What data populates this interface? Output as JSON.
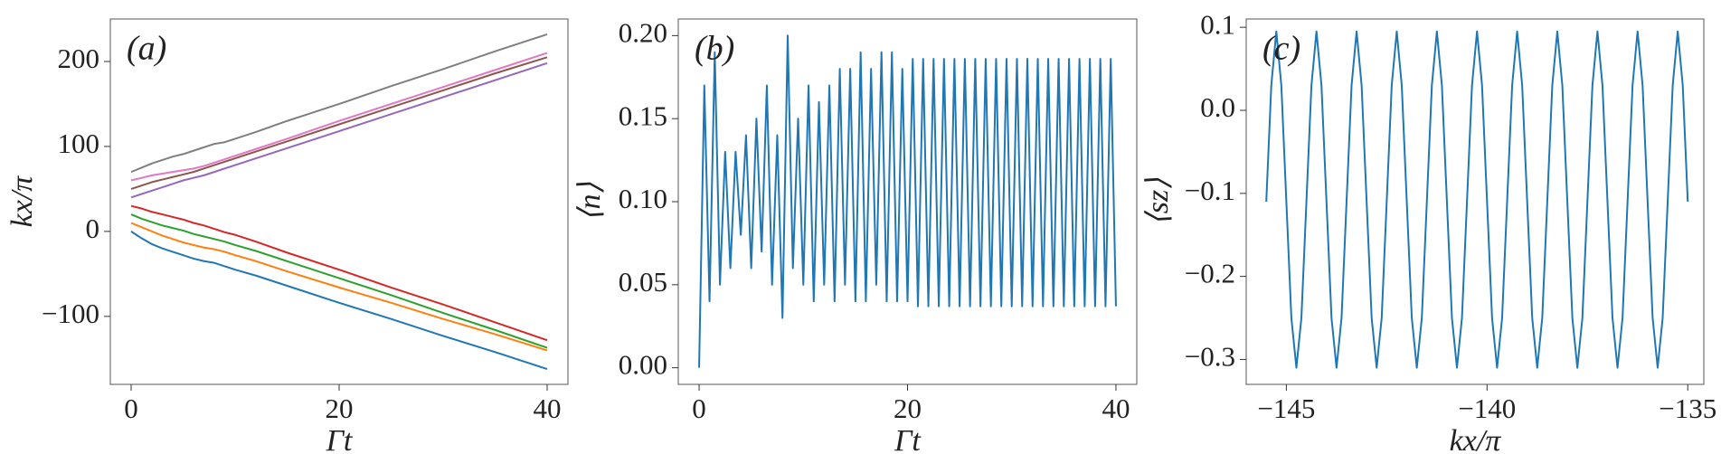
{
  "chart_data": [
    {
      "type": "line",
      "panel_label": "(a)",
      "x_label": "Γt",
      "y_label": "kx/π",
      "x": [
        0,
        1,
        2,
        3,
        4,
        5,
        6,
        7,
        8,
        9,
        10,
        12,
        15,
        20,
        25,
        30,
        35,
        40
      ],
      "xlim": [
        -2,
        42
      ],
      "xticks": [
        0,
        20,
        40
      ],
      "ylim": [
        -180,
        250
      ],
      "yticks": [
        {
          "value": -100,
          "label": "−100"
        },
        0,
        100,
        200
      ],
      "series": [
        {
          "color": "#1f77b4",
          "values": [
            0,
            -8,
            -15,
            -20,
            -24,
            -28,
            -32,
            -35,
            -37,
            -41,
            -45,
            -52,
            -64,
            -84,
            -103,
            -123,
            -142,
            -162
          ]
        },
        {
          "color": "#ff7f0e",
          "values": [
            10,
            5,
            0,
            -5,
            -9,
            -13,
            -16,
            -19,
            -21,
            -24,
            -28,
            -35,
            -47,
            -66,
            -84,
            -103,
            -121,
            -140
          ]
        },
        {
          "color": "#2ca02c",
          "values": [
            20,
            15,
            11,
            7,
            4,
            1,
            -3,
            -6,
            -9,
            -12,
            -16,
            -23,
            -35,
            -55,
            -75,
            -96,
            -116,
            -137
          ]
        },
        {
          "color": "#d62728",
          "values": [
            30,
            27,
            23,
            20,
            17,
            14,
            10,
            7,
            3,
            -1,
            -4,
            -12,
            -25,
            -45,
            -66,
            -86,
            -107,
            -128
          ]
        },
        {
          "color": "#9467bd",
          "values": [
            40,
            44,
            48,
            52,
            56,
            60,
            63,
            66,
            70,
            74,
            78,
            86,
            98,
            118,
            138,
            158,
            178,
            198
          ]
        },
        {
          "color": "#8c564b",
          "values": [
            50,
            54,
            58,
            61,
            64,
            67,
            70,
            74,
            78,
            82,
            86,
            94,
            106,
            126,
            146,
            166,
            186,
            205
          ]
        },
        {
          "color": "#e377c2",
          "values": [
            60,
            63,
            66,
            68,
            70,
            72,
            74,
            77,
            81,
            85,
            89,
            97,
            109,
            130,
            150,
            170,
            190,
            210
          ]
        },
        {
          "color": "#7f7f7f",
          "values": [
            70,
            75,
            80,
            84,
            88,
            91,
            95,
            99,
            103,
            105,
            109,
            117,
            130,
            150,
            171,
            191,
            212,
            232
          ]
        }
      ]
    },
    {
      "type": "line",
      "panel_label": "(b)",
      "x_label": "Γt",
      "y_label": "⟨n⟩",
      "x": [
        0,
        0.5,
        1,
        1.5,
        2,
        2.5,
        3,
        3.5,
        4,
        4.5,
        5,
        5.5,
        6,
        6.5,
        7,
        7.5,
        8,
        8.5,
        9,
        9.5,
        10,
        10.5,
        11,
        11.5,
        12,
        12.5,
        13,
        13.5,
        14,
        14.5,
        15,
        15.5,
        16,
        16.5,
        17,
        17.5,
        18,
        18.5,
        19,
        19.5,
        20,
        20.5,
        21,
        21.5,
        22,
        22.5,
        23,
        23.5,
        24,
        24.5,
        25,
        25.5,
        26,
        26.5,
        27,
        27.5,
        28,
        28.5,
        29,
        29.5,
        30,
        30.5,
        31,
        31.5,
        32,
        32.5,
        33,
        33.5,
        34,
        34.5,
        35,
        35.5,
        36,
        36.5,
        37,
        37.5,
        38,
        38.5,
        39,
        39.5,
        40
      ],
      "xlim": [
        -2,
        42
      ],
      "xticks": [
        0,
        20,
        40
      ],
      "ylim": [
        -0.01,
        0.21
      ],
      "yticks": [
        {
          "value": 0,
          "label": "0.00"
        },
        0.05,
        {
          "value": 0.1,
          "label": "0.10"
        },
        0.15,
        {
          "value": 0.2,
          "label": "0.20"
        }
      ],
      "series": [
        {
          "color": "#1f77b4",
          "values": [
            0.0,
            0.17,
            0.04,
            0.19,
            0.05,
            0.13,
            0.06,
            0.13,
            0.08,
            0.14,
            0.06,
            0.15,
            0.07,
            0.17,
            0.05,
            0.14,
            0.03,
            0.2,
            0.06,
            0.15,
            0.05,
            0.17,
            0.04,
            0.16,
            0.05,
            0.17,
            0.04,
            0.18,
            0.05,
            0.18,
            0.04,
            0.19,
            0.04,
            0.18,
            0.05,
            0.19,
            0.04,
            0.19,
            0.04,
            0.18,
            0.04,
            0.186,
            0.037,
            0.186,
            0.037,
            0.186,
            0.037,
            0.186,
            0.037,
            0.186,
            0.037,
            0.186,
            0.037,
            0.186,
            0.037,
            0.186,
            0.037,
            0.186,
            0.037,
            0.186,
            0.037,
            0.186,
            0.037,
            0.186,
            0.037,
            0.186,
            0.037,
            0.186,
            0.037,
            0.186,
            0.037,
            0.186,
            0.037,
            0.186,
            0.037,
            0.186,
            0.037,
            0.186,
            0.037,
            0.186,
            0.037
          ]
        }
      ]
    },
    {
      "type": "line",
      "panel_label": "(c)",
      "x_label": "kx/π",
      "y_label": "⟨sz⟩",
      "x": [
        -145.5,
        -145.375,
        -145.25,
        -145.125,
        -145,
        -144.875,
        -144.75,
        -144.625,
        -144.5,
        -144.375,
        -144.25,
        -144.125,
        -144,
        -143.875,
        -143.75,
        -143.625,
        -143.5,
        -143.375,
        -143.25,
        -143.125,
        -143,
        -142.875,
        -142.75,
        -142.625,
        -142.5,
        -142.375,
        -142.25,
        -142.125,
        -142,
        -141.875,
        -141.75,
        -141.625,
        -141.5,
        -141.375,
        -141.25,
        -141.125,
        -141,
        -140.875,
        -140.75,
        -140.625,
        -140.5,
        -140.375,
        -140.25,
        -140.125,
        -140,
        -139.875,
        -139.75,
        -139.625,
        -139.5,
        -139.375,
        -139.25,
        -139.125,
        -139,
        -138.875,
        -138.75,
        -138.625,
        -138.5,
        -138.375,
        -138.25,
        -138.125,
        -138,
        -137.875,
        -137.75,
        -137.625,
        -137.5,
        -137.375,
        -137.25,
        -137.125,
        -137,
        -136.875,
        -136.75,
        -136.625,
        -136.5,
        -136.375,
        -136.25,
        -136.125,
        -136,
        -135.875,
        -135.75,
        -135.625,
        -135.5,
        -135.375,
        -135.25,
        -135.125,
        -135
      ],
      "xlim": [
        -146,
        -134.6
      ],
      "xticks": [
        {
          "value": -145,
          "label": "−145"
        },
        {
          "value": -140,
          "label": "−140"
        },
        {
          "value": -135,
          "label": "−135"
        }
      ],
      "ylim": [
        -0.33,
        0.11
      ],
      "yticks": [
        0.1,
        {
          "value": 0,
          "label": "0.0"
        },
        {
          "value": -0.1,
          "label": "−0.1"
        },
        {
          "value": -0.2,
          "label": "−0.2"
        },
        {
          "value": -0.3,
          "label": "−0.3"
        }
      ],
      "series": [
        {
          "color": "#1f77b4",
          "values": [
            -0.11,
            0.03,
            0.095,
            0.03,
            -0.11,
            -0.25,
            -0.31,
            -0.25,
            -0.11,
            0.03,
            0.095,
            0.03,
            -0.11,
            -0.25,
            -0.31,
            -0.25,
            -0.11,
            0.03,
            0.095,
            0.03,
            -0.11,
            -0.25,
            -0.31,
            -0.25,
            -0.11,
            0.03,
            0.095,
            0.03,
            -0.11,
            -0.25,
            -0.31,
            -0.25,
            -0.11,
            0.03,
            0.095,
            0.03,
            -0.11,
            -0.25,
            -0.31,
            -0.25,
            -0.11,
            0.03,
            0.095,
            0.03,
            -0.11,
            -0.25,
            -0.31,
            -0.25,
            -0.11,
            0.03,
            0.095,
            0.03,
            -0.11,
            -0.25,
            -0.31,
            -0.25,
            -0.11,
            0.03,
            0.095,
            0.03,
            -0.11,
            -0.25,
            -0.31,
            -0.25,
            -0.11,
            0.03,
            0.095,
            0.03,
            -0.11,
            -0.25,
            -0.31,
            -0.25,
            -0.11,
            0.03,
            0.095,
            0.03,
            -0.11,
            -0.25,
            -0.31,
            -0.25,
            -0.11,
            0.03,
            0.095,
            0.03,
            -0.11
          ]
        }
      ]
    }
  ]
}
